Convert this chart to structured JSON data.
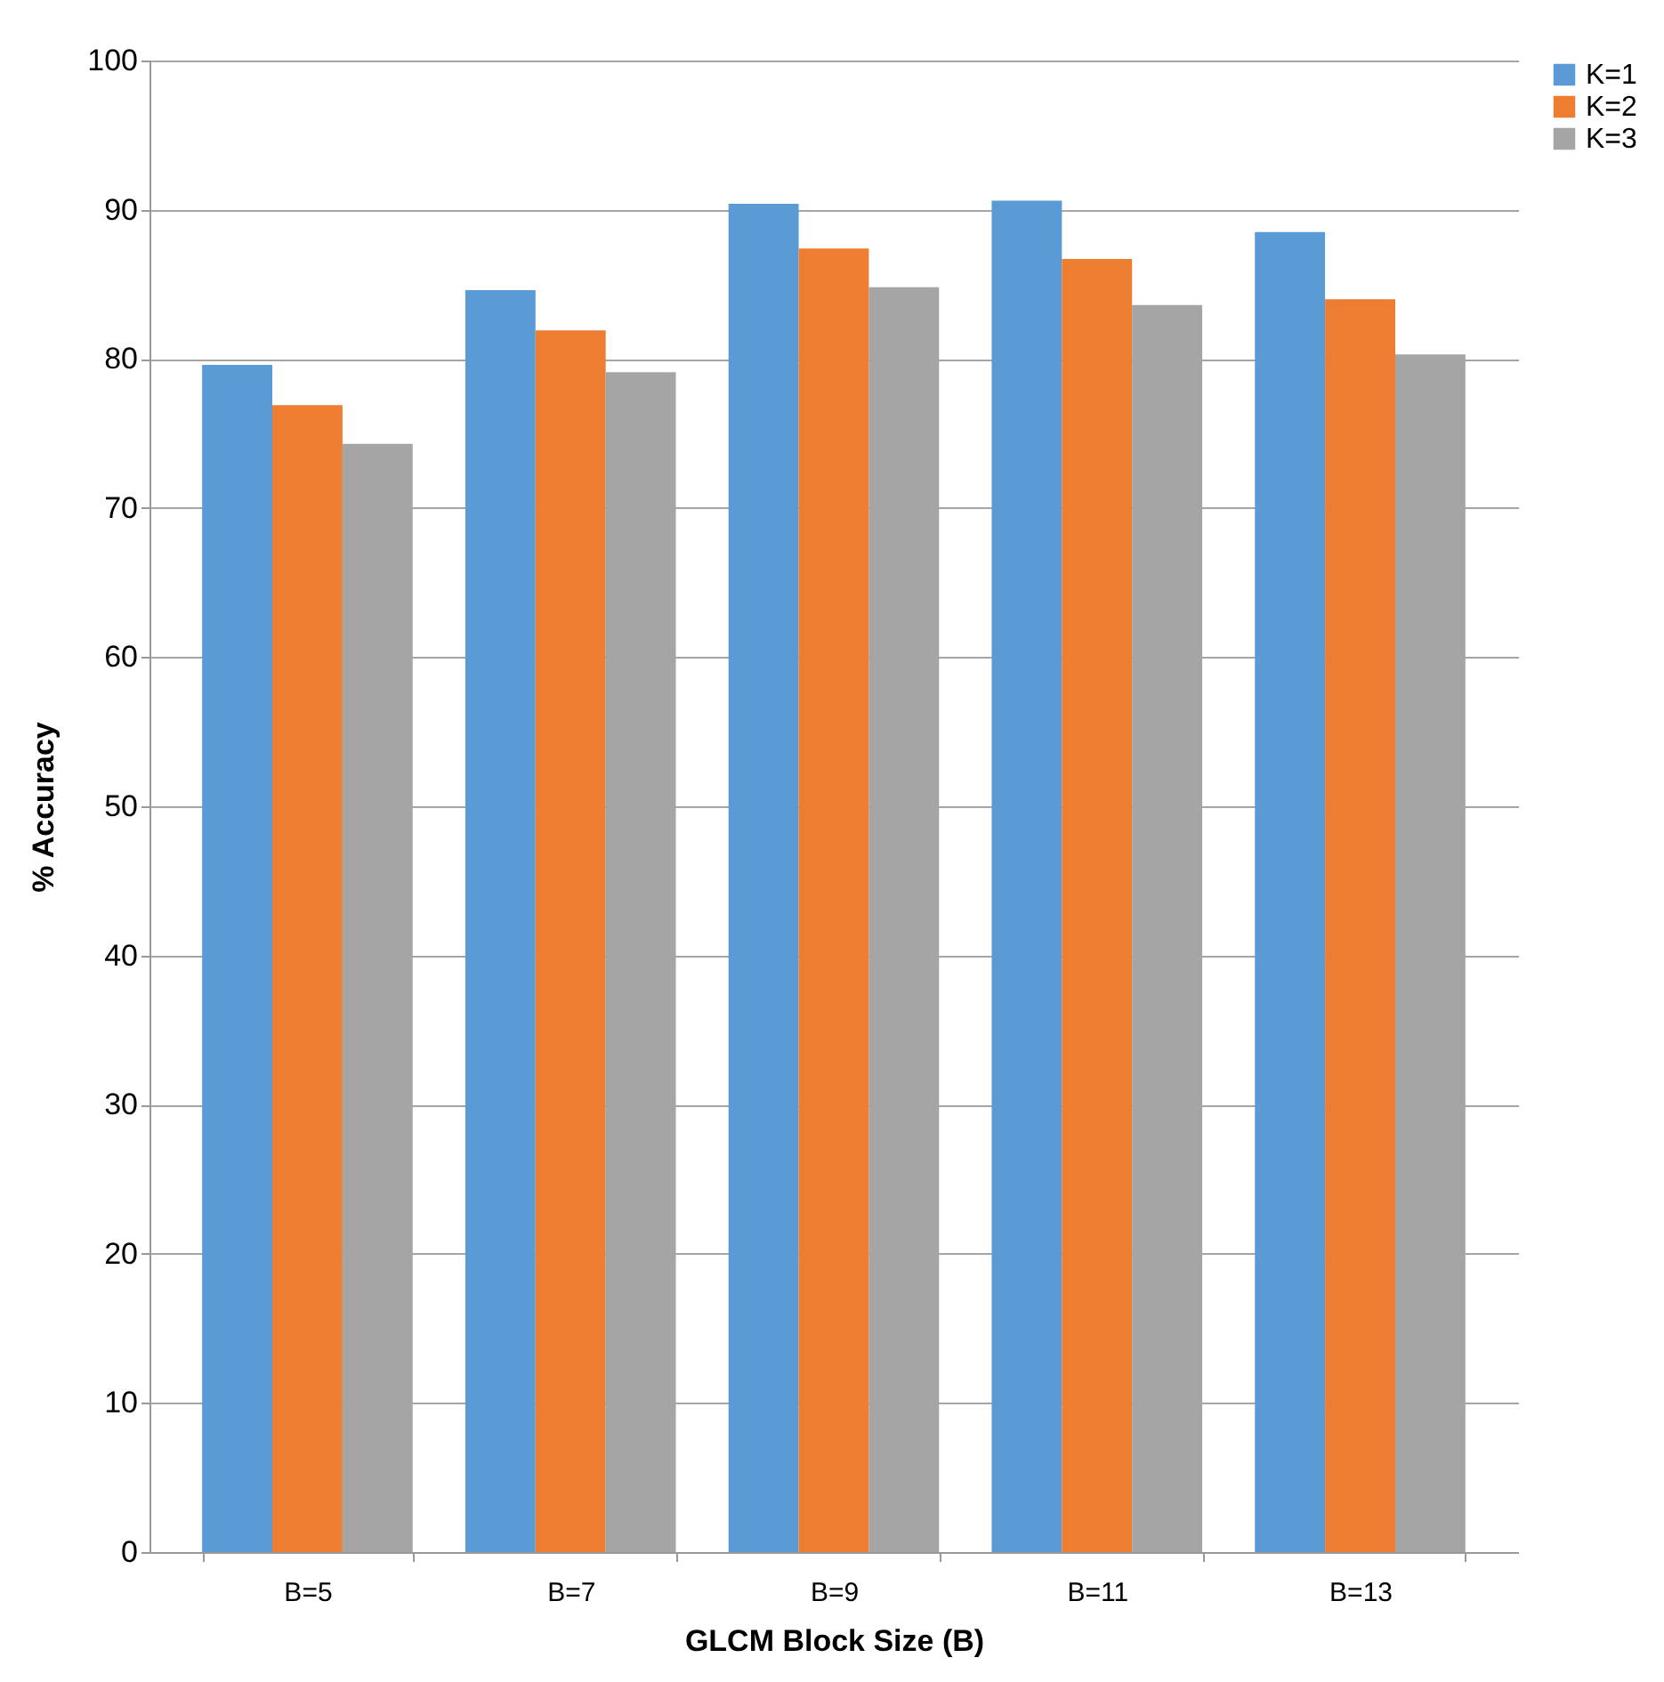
{
  "chart_data": {
    "type": "bar",
    "xlabel": "GLCM Block Size (B)",
    "ylabel": "% Accuracy",
    "categories": [
      "B=5",
      "B=7",
      "B=9",
      "B=11",
      "B=13"
    ],
    "series": [
      {
        "name": "K=1",
        "color": "#5b9bd5",
        "values": [
          79.6,
          84.6,
          90.4,
          90.6,
          88.5
        ]
      },
      {
        "name": "K=2",
        "color": "#ed7d31",
        "values": [
          76.9,
          81.9,
          87.4,
          86.7,
          84.0
        ]
      },
      {
        "name": "K=3",
        "color": "#a5a5a5",
        "values": [
          74.3,
          79.1,
          84.8,
          83.6,
          80.3
        ]
      }
    ],
    "ylim": [
      0,
      100
    ],
    "yticks": [
      0,
      10,
      20,
      30,
      40,
      50,
      60,
      70,
      80,
      90,
      100
    ],
    "grid": "y",
    "legend": "right"
  }
}
